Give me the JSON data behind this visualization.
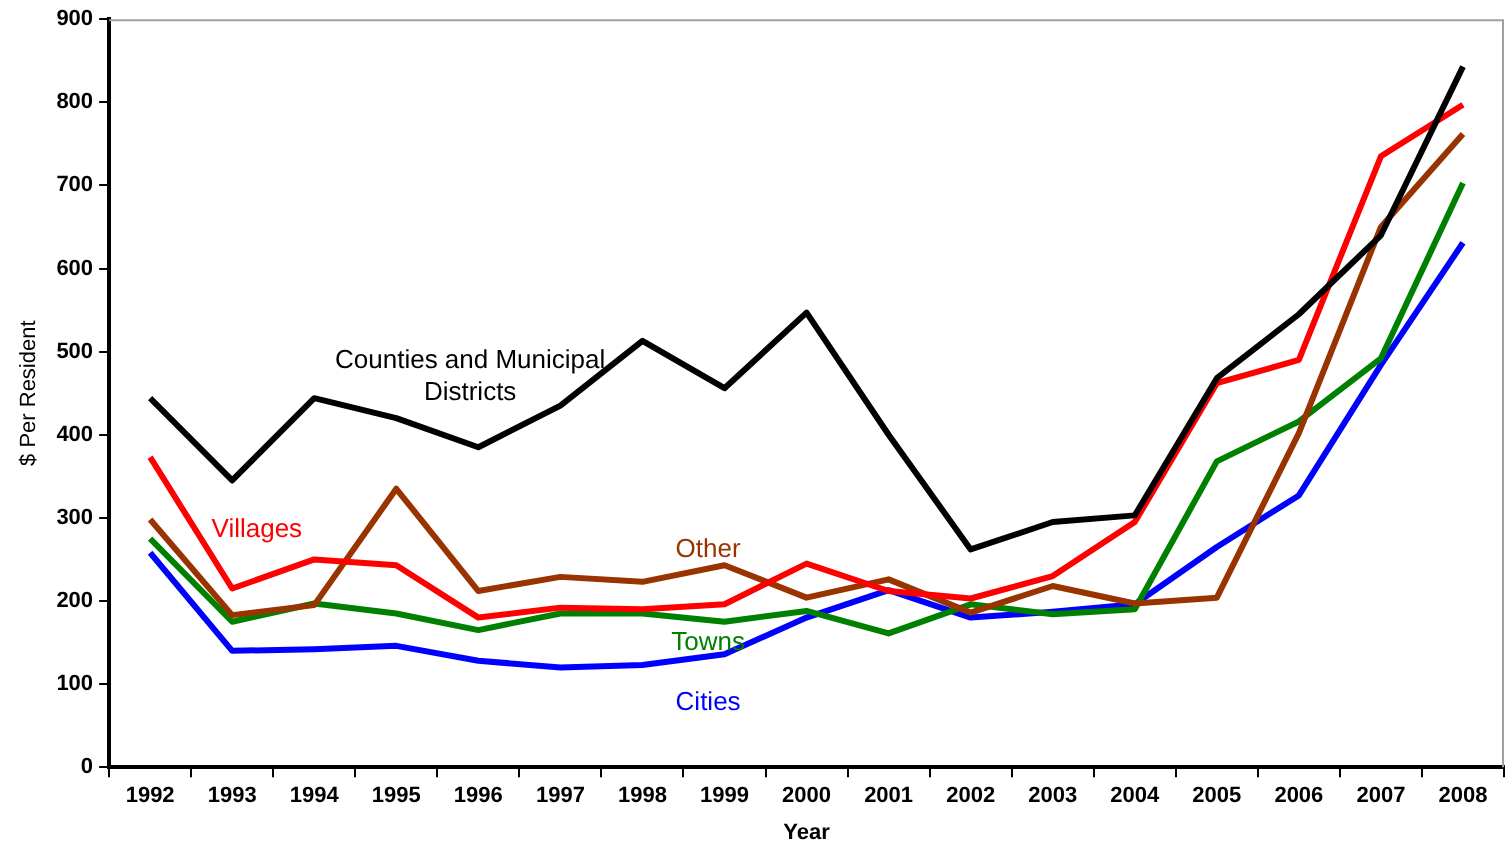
{
  "chart_data": {
    "type": "line",
    "xlabel": "Year",
    "ylabel": "$ Per Resident",
    "categories": [
      "1992",
      "1993",
      "1994",
      "1995",
      "1996",
      "1997",
      "1998",
      "1999",
      "2000",
      "2001",
      "2002",
      "2003",
      "2004",
      "2005",
      "2006",
      "2007",
      "2008"
    ],
    "ylim": [
      0,
      900
    ],
    "yticks": [
      0,
      100,
      200,
      300,
      400,
      500,
      600,
      700,
      800,
      900
    ],
    "grid": false,
    "legend": false,
    "marker": "none",
    "line_style": "solid",
    "series": [
      {
        "name": "Counties and Municipal Districts",
        "color": "#000000",
        "values": [
          444,
          345,
          444,
          420,
          385,
          435,
          513,
          456,
          547,
          400,
          262,
          295,
          303,
          468,
          545,
          640,
          843
        ]
      },
      {
        "name": "Villages",
        "color": "#ff0000",
        "values": [
          373,
          215,
          250,
          243,
          180,
          192,
          190,
          196,
          245,
          212,
          203,
          230,
          295,
          462,
          490,
          735,
          797
        ]
      },
      {
        "name": "Other",
        "color": "#993300",
        "values": [
          298,
          183,
          195,
          335,
          212,
          229,
          223,
          243,
          204,
          226,
          186,
          218,
          197,
          204,
          402,
          650,
          762
        ]
      },
      {
        "name": "Towns",
        "color": "#008000",
        "values": [
          275,
          175,
          197,
          185,
          165,
          185,
          185,
          175,
          188,
          161,
          196,
          184,
          190,
          368,
          416,
          492,
          703
        ]
      },
      {
        "name": "Cities",
        "color": "#0000ff",
        "values": [
          258,
          140,
          142,
          146,
          128,
          120,
          123,
          136,
          180,
          213,
          180,
          187,
          196,
          265,
          327,
          484,
          631
        ]
      }
    ]
  }
}
